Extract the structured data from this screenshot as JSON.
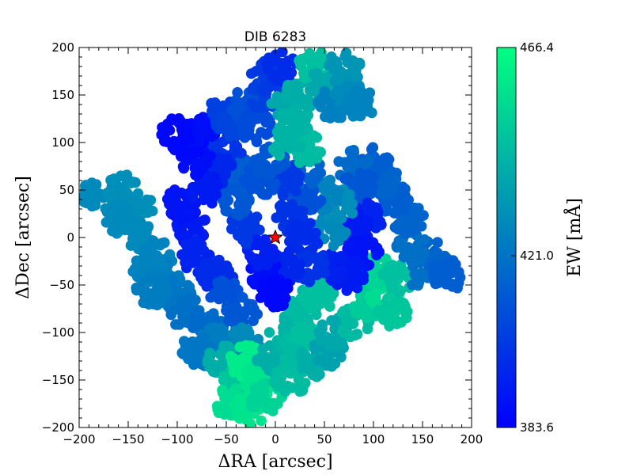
{
  "chart_data": {
    "type": "scatter",
    "title": "DIB 6283",
    "xlabel": "ΔRA [arcsec]",
    "ylabel": "ΔDec [arcsec]",
    "xlim": [
      -200,
      200
    ],
    "ylim": [
      -200,
      200
    ],
    "xticks": [
      -200,
      -150,
      -100,
      -50,
      0,
      50,
      100,
      150,
      200
    ],
    "yticks": [
      -200,
      -150,
      -100,
      -50,
      0,
      50,
      100,
      150,
      200
    ],
    "xtick_labels": [
      "−200",
      "−150",
      "−100",
      "−50",
      "0",
      "50",
      "100",
      "150",
      "200"
    ],
    "ytick_labels": [
      "−200",
      "−150",
      "−100",
      "−50",
      "0",
      "50",
      "100",
      "150",
      "200"
    ],
    "grid": false,
    "colorbar": {
      "label": "EW [mÅ]",
      "min": 383.6,
      "max": 466.4,
      "ticks": [
        383.6,
        421.0,
        466.4
      ],
      "tick_labels": [
        "383.6",
        "421.0",
        "466.4"
      ],
      "colormap": "winter",
      "color_low": "#0000ff",
      "color_high": "#00ff80"
    },
    "marker": {
      "label": "star",
      "x": 0,
      "y": 0,
      "color": "#ff0000"
    },
    "regions": [
      {
        "x": -180,
        "y": 45,
        "ew": 428
      },
      {
        "x": -155,
        "y": 50,
        "ew": 430
      },
      {
        "x": -140,
        "y": 30,
        "ew": 430
      },
      {
        "x": -160,
        "y": 20,
        "ew": 428
      },
      {
        "x": -135,
        "y": 0,
        "ew": 428
      },
      {
        "x": -120,
        "y": -20,
        "ew": 426
      },
      {
        "x": -110,
        "y": -40,
        "ew": 424
      },
      {
        "x": -130,
        "y": -30,
        "ew": 426
      },
      {
        "x": -100,
        "y": -60,
        "ew": 422
      },
      {
        "x": -125,
        "y": -55,
        "ew": 424
      },
      {
        "x": -85,
        "y": 10,
        "ew": 392
      },
      {
        "x": -95,
        "y": 35,
        "ew": 390
      },
      {
        "x": -80,
        "y": -20,
        "ew": 395
      },
      {
        "x": -60,
        "y": -40,
        "ew": 398
      },
      {
        "x": -90,
        "y": -80,
        "ew": 420
      },
      {
        "x": -70,
        "y": -90,
        "ew": 418
      },
      {
        "x": -60,
        "y": -110,
        "ew": 424
      },
      {
        "x": -80,
        "y": -120,
        "ew": 422
      },
      {
        "x": -50,
        "y": -60,
        "ew": 410
      },
      {
        "x": -35,
        "y": -80,
        "ew": 412
      },
      {
        "x": -30,
        "y": -110,
        "ew": 428
      },
      {
        "x": -55,
        "y": -130,
        "ew": 440
      },
      {
        "x": -40,
        "y": -150,
        "ew": 448
      },
      {
        "x": -30,
        "y": -130,
        "ew": 460
      },
      {
        "x": -15,
        "y": -150,
        "ew": 458
      },
      {
        "x": -45,
        "y": -175,
        "ew": 455
      },
      {
        "x": -25,
        "y": -180,
        "ew": 458
      },
      {
        "x": -10,
        "y": -170,
        "ew": 452
      },
      {
        "x": -5,
        "y": -130,
        "ew": 440
      },
      {
        "x": 10,
        "y": -100,
        "ew": 442
      },
      {
        "x": 20,
        "y": -120,
        "ew": 444
      },
      {
        "x": 15,
        "y": -150,
        "ew": 445
      },
      {
        "x": 35,
        "y": -100,
        "ew": 446
      },
      {
        "x": 40,
        "y": -130,
        "ew": 440
      },
      {
        "x": 55,
        "y": -120,
        "ew": 436
      },
      {
        "x": 60,
        "y": -100,
        "ew": 438
      },
      {
        "x": 30,
        "y": -70,
        "ew": 444
      },
      {
        "x": 45,
        "y": -60,
        "ew": 446
      },
      {
        "x": 80,
        "y": -90,
        "ew": 444
      },
      {
        "x": 95,
        "y": -70,
        "ew": 450
      },
      {
        "x": 110,
        "y": -60,
        "ew": 455
      },
      {
        "x": 120,
        "y": -80,
        "ew": 448
      },
      {
        "x": 105,
        "y": -35,
        "ew": 452
      },
      {
        "x": 125,
        "y": -45,
        "ew": 446
      },
      {
        "x": 150,
        "y": -40,
        "ew": 420
      },
      {
        "x": 160,
        "y": -20,
        "ew": 416
      },
      {
        "x": 175,
        "y": -40,
        "ew": 414
      },
      {
        "x": 140,
        "y": -10,
        "ew": 420
      },
      {
        "x": 135,
        "y": 20,
        "ew": 416
      },
      {
        "x": 120,
        "y": 40,
        "ew": 414
      },
      {
        "x": 110,
        "y": 60,
        "ew": 416
      },
      {
        "x": 100,
        "y": 80,
        "ew": 414
      },
      {
        "x": 80,
        "y": 75,
        "ew": 418
      },
      {
        "x": 85,
        "y": 55,
        "ew": 412
      },
      {
        "x": 95,
        "y": 20,
        "ew": 395
      },
      {
        "x": 80,
        "y": 10,
        "ew": 392
      },
      {
        "x": 90,
        "y": -15,
        "ew": 390
      },
      {
        "x": 75,
        "y": -40,
        "ew": 392
      },
      {
        "x": 60,
        "y": -30,
        "ew": 394
      },
      {
        "x": 55,
        "y": 5,
        "ew": 428
      },
      {
        "x": 65,
        "y": 35,
        "ew": 430
      },
      {
        "x": 50,
        "y": 45,
        "ew": 426
      },
      {
        "x": 30,
        "y": 40,
        "ew": 410
      },
      {
        "x": 30,
        "y": 70,
        "ew": 415
      },
      {
        "x": 10,
        "y": 60,
        "ew": 402
      },
      {
        "x": 15,
        "y": 20,
        "ew": 400
      },
      {
        "x": 30,
        "y": 0,
        "ew": 398
      },
      {
        "x": 35,
        "y": -30,
        "ew": 400
      },
      {
        "x": 10,
        "y": -30,
        "ew": 396
      },
      {
        "x": -10,
        "y": -40,
        "ew": 388
      },
      {
        "x": 0,
        "y": -60,
        "ew": 386
      },
      {
        "x": -15,
        "y": -15,
        "ew": 394
      },
      {
        "x": -30,
        "y": 10,
        "ew": 402
      },
      {
        "x": -40,
        "y": 40,
        "ew": 412
      },
      {
        "x": -35,
        "y": 70,
        "ew": 414
      },
      {
        "x": -15,
        "y": 60,
        "ew": 410
      },
      {
        "x": -5,
        "y": 80,
        "ew": 412
      },
      {
        "x": -50,
        "y": 90,
        "ew": 400
      },
      {
        "x": -60,
        "y": 70,
        "ew": 396
      },
      {
        "x": -70,
        "y": 50,
        "ew": 392
      },
      {
        "x": -80,
        "y": 80,
        "ew": 388
      },
      {
        "x": -90,
        "y": 100,
        "ew": 386
      },
      {
        "x": -75,
        "y": 110,
        "ew": 388
      },
      {
        "x": -100,
        "y": 110,
        "ew": 386
      },
      {
        "x": -55,
        "y": 130,
        "ew": 404
      },
      {
        "x": -40,
        "y": 120,
        "ew": 406
      },
      {
        "x": -30,
        "y": 140,
        "ew": 410
      },
      {
        "x": -20,
        "y": 115,
        "ew": 408
      },
      {
        "x": -10,
        "y": 150,
        "ew": 404
      },
      {
        "x": -10,
        "y": 170,
        "ew": 402
      },
      {
        "x": 5,
        "y": 180,
        "ew": 398
      },
      {
        "x": 10,
        "y": 140,
        "ew": 438
      },
      {
        "x": 25,
        "y": 150,
        "ew": 440
      },
      {
        "x": 20,
        "y": 120,
        "ew": 442
      },
      {
        "x": 30,
        "y": 95,
        "ew": 445
      },
      {
        "x": 10,
        "y": 100,
        "ew": 442
      },
      {
        "x": 40,
        "y": 180,
        "ew": 446
      },
      {
        "x": 50,
        "y": 160,
        "ew": 438
      },
      {
        "x": 60,
        "y": 140,
        "ew": 425
      },
      {
        "x": 75,
        "y": 155,
        "ew": 428
      },
      {
        "x": 70,
        "y": 180,
        "ew": 432
      },
      {
        "x": 85,
        "y": 140,
        "ew": 426
      }
    ]
  }
}
